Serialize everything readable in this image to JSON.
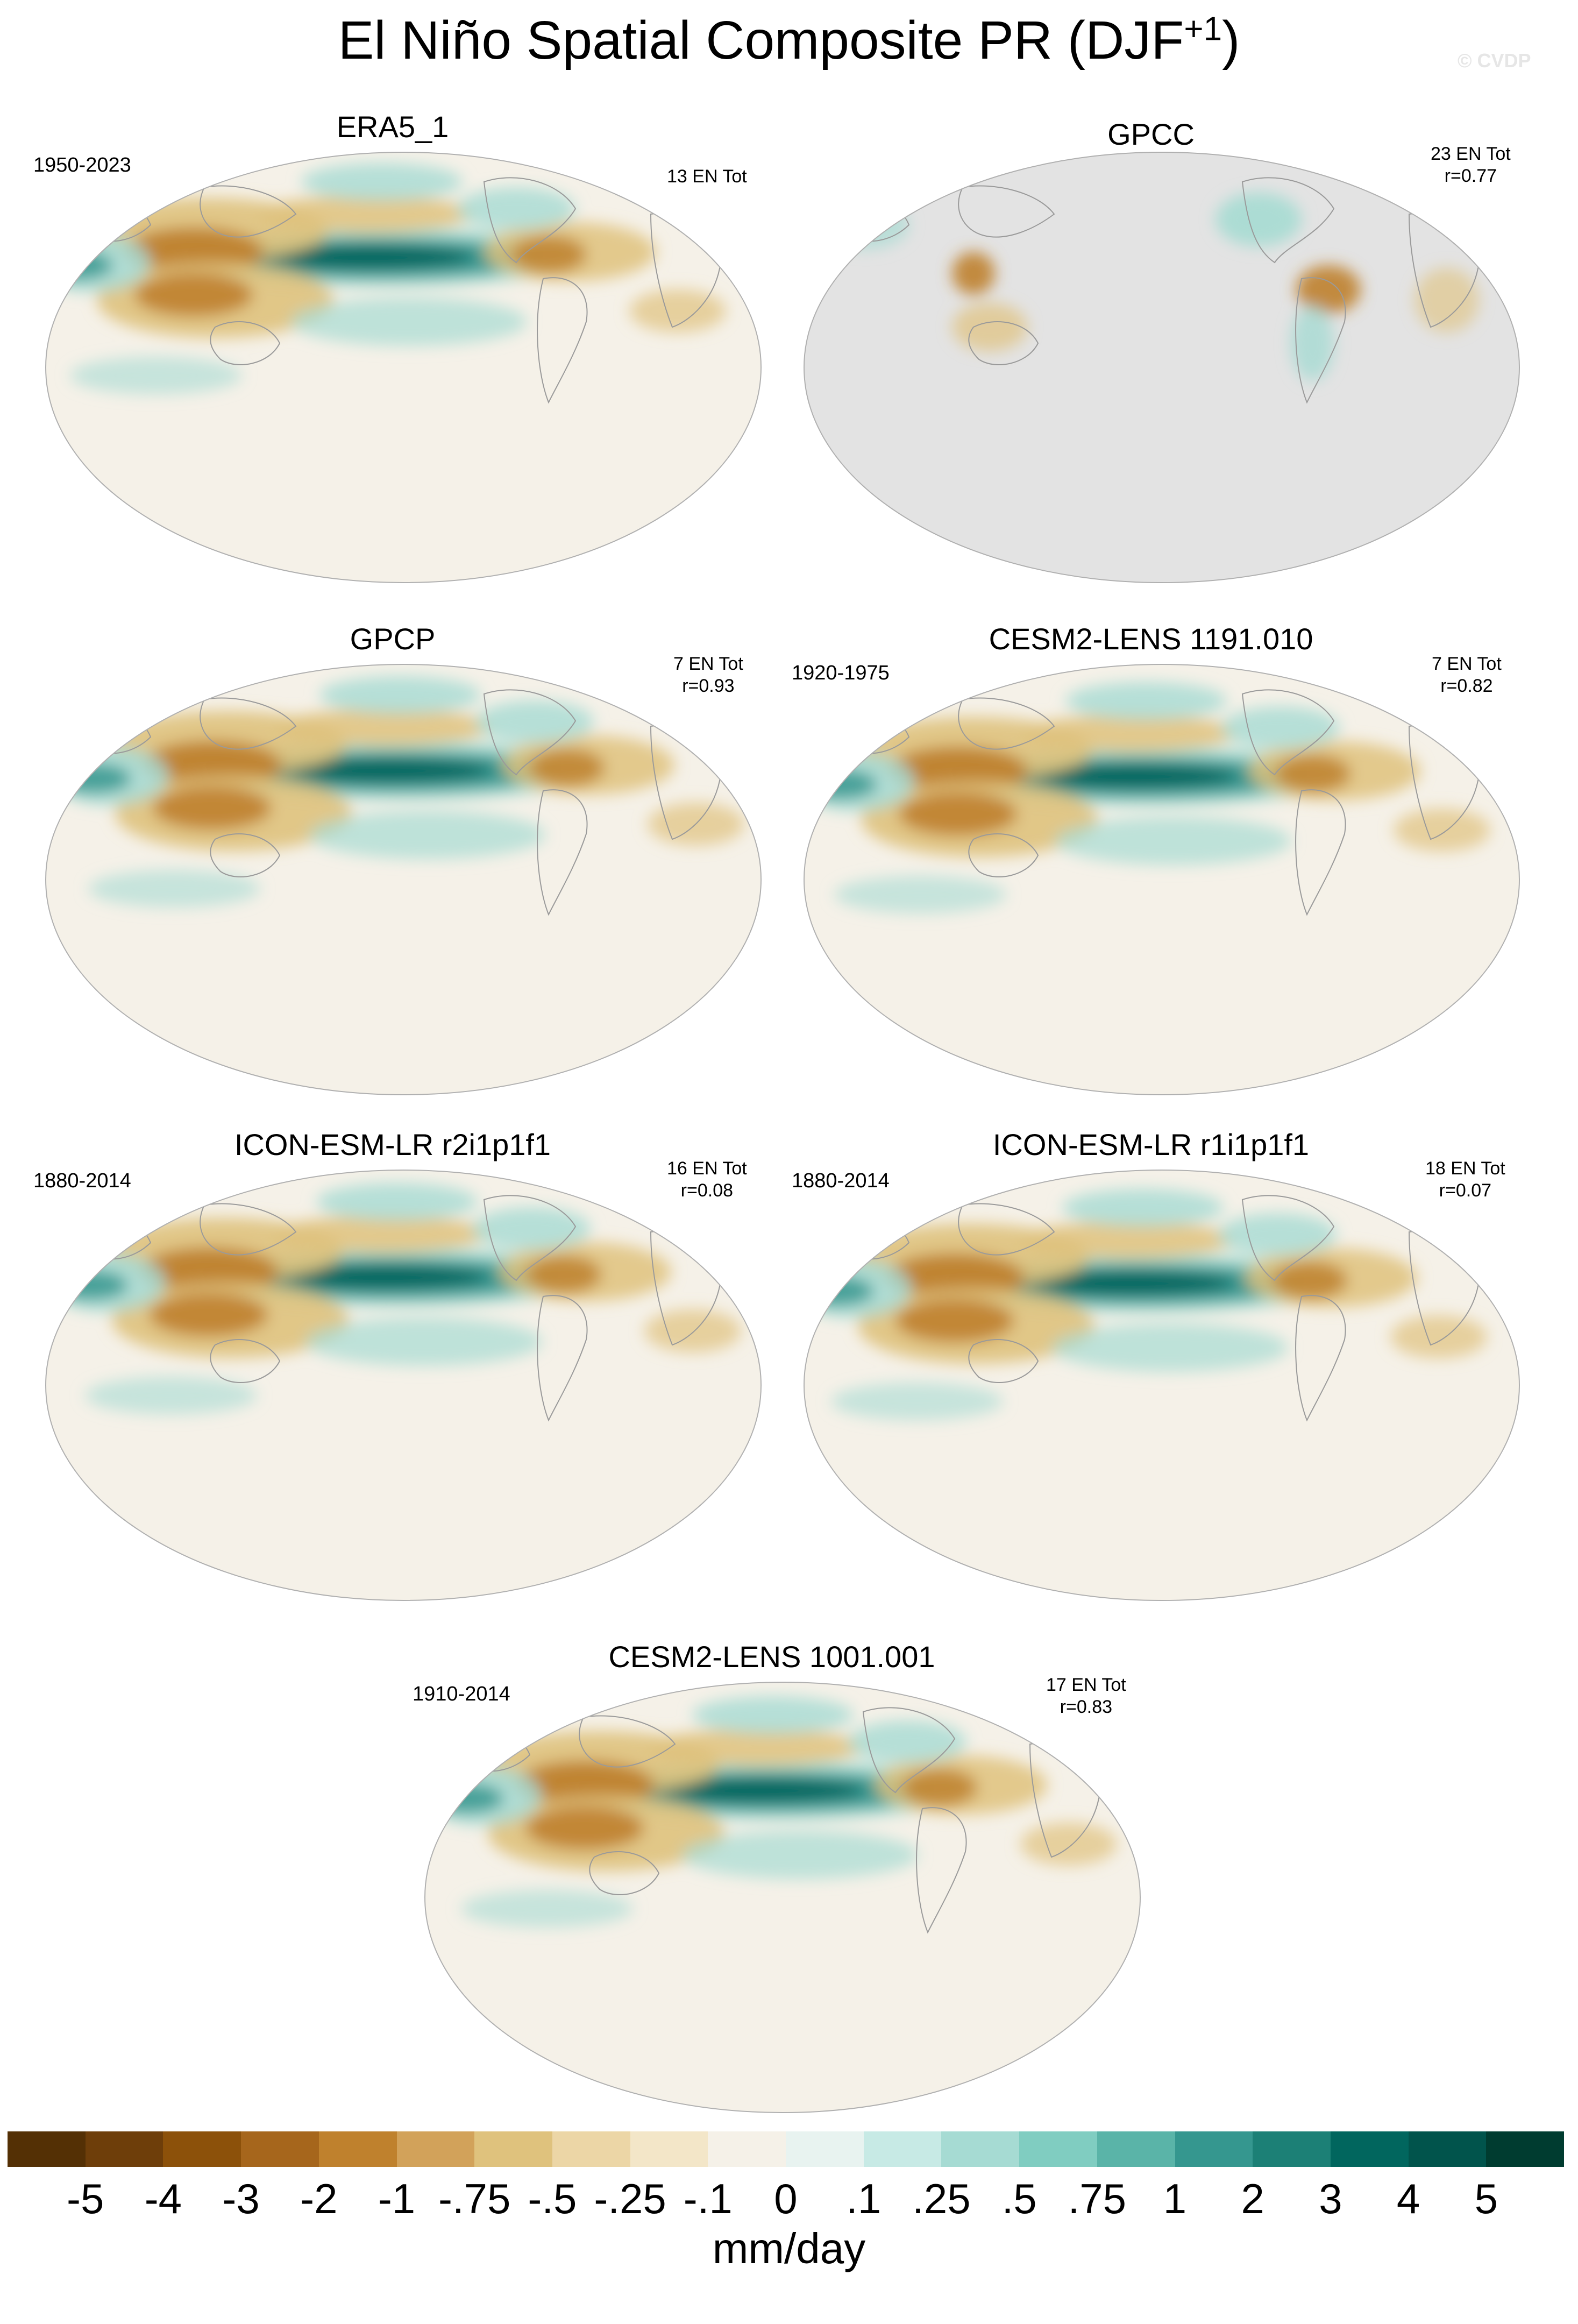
{
  "figure": {
    "title_main": "El Niño Spatial Composite PR (DJF",
    "title_sup": "+1",
    "title_end": ")",
    "watermark": "© CVDP"
  },
  "panels": [
    {
      "title": "ERA5_1",
      "years": "1950-2023",
      "en_tot": "13 EN Tot",
      "r": "",
      "masked": false
    },
    {
      "title": "GPCC",
      "years": "",
      "en_tot": "23 EN Tot",
      "r": "r=0.77",
      "masked": true
    },
    {
      "title": "GPCP",
      "years": "",
      "en_tot": "7 EN Tot",
      "r": "r=0.93",
      "masked": false
    },
    {
      "title": "CESM2-LENS 1191.010",
      "years": "1920-1975",
      "en_tot": "7 EN Tot",
      "r": "r=0.82",
      "masked": false
    },
    {
      "title": "ICON-ESM-LR r2i1p1f1",
      "years": "1880-2014",
      "en_tot": "16 EN Tot",
      "r": "r=0.08",
      "masked": false
    },
    {
      "title": "ICON-ESM-LR r1i1p1f1",
      "years": "1880-2014",
      "en_tot": "18 EN Tot",
      "r": "r=0.07",
      "masked": false
    },
    {
      "title": "CESM2-LENS 1001.001",
      "years": "1910-2014",
      "en_tot": "17 EN Tot",
      "r": "r=0.83",
      "masked": false
    }
  ],
  "colorbar": {
    "units": "mm/day",
    "tick_labels": [
      "-5",
      "-4",
      "-3",
      "-2",
      "-1",
      "-.75",
      "-.5",
      "-.25",
      "-.1",
      "0",
      ".1",
      ".25",
      ".5",
      ".75",
      "1",
      "2",
      "3",
      "4",
      "5"
    ],
    "colors": [
      "#543005",
      "#6e3e0a",
      "#8c510a",
      "#a6661c",
      "#bf812d",
      "#d2a25a",
      "#dfc27d",
      "#ecd6a6",
      "#f3e6c8",
      "#f5f1e8",
      "#e8f3f0",
      "#c7eae5",
      "#a6dbd3",
      "#80cdc1",
      "#5ab4a8",
      "#35978f",
      "#1c8076",
      "#01665e",
      "#01544c",
      "#003c30"
    ]
  },
  "map_colors": {
    "ocean_base": "#f5f1e8",
    "land_mask": "#e3e3e3",
    "coast": "#9a9a9a",
    "dry_strong": "#8c510a",
    "dry_mid": "#bf812d",
    "dry_light": "#dfc27d",
    "wet_light": "#a6dbd3",
    "wet_mid": "#35978f",
    "wet_strong": "#01665e"
  }
}
